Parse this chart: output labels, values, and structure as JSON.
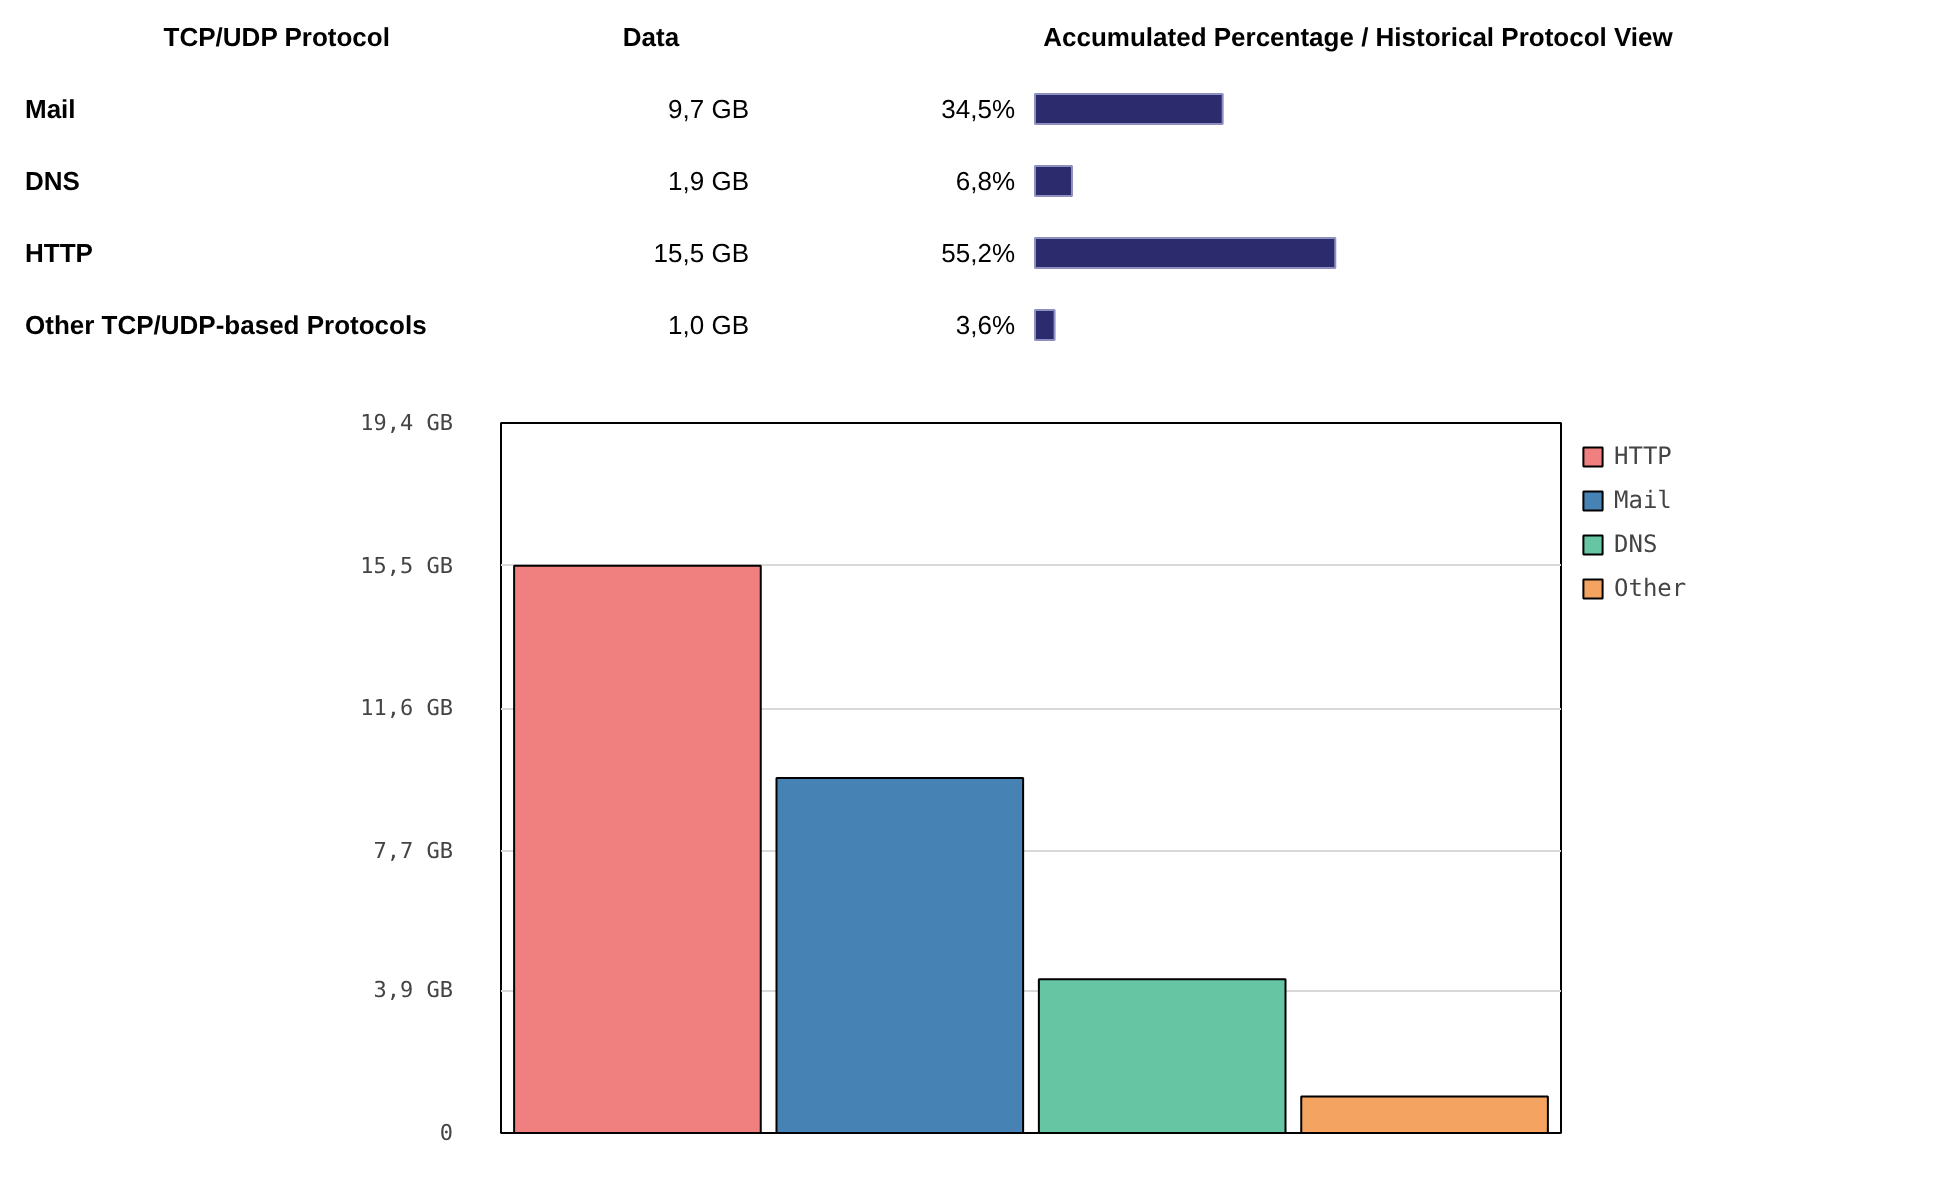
{
  "chart_data": [
    {
      "type": "bar",
      "orientation": "horizontal",
      "ylabel": "TCP/UDP Protocol",
      "title": "Accumulated Percentage / Historical Protocol View",
      "categories": [
        "Mail",
        "DNS",
        "HTTP",
        "Other TCP/UDP-based Protocols"
      ],
      "values": [
        34.5,
        6.8,
        55.2,
        3.6
      ],
      "value_labels": [
        "34,5%",
        "6,8%",
        "55,2%",
        "3,6%"
      ],
      "color": "#2b2b6e",
      "tick_labels": "y",
      "annotations": [
        "Data",
        "9,7 GB",
        "1,9 GB",
        "15,5 GB",
        "1,0 GB"
      ]
    },
    {
      "type": "bar",
      "categories": [
        null,
        null,
        null,
        null
      ],
      "series": [
        {
          "name": "HTTP",
          "color": "#f08080",
          "values": [
            15.5,
            null,
            null,
            null
          ]
        },
        {
          "name": "Mail",
          "color": "#4682b4",
          "values": [
            null,
            9.7,
            null,
            null
          ]
        },
        {
          "name": "DNS",
          "color": "#66c6a4",
          "values": [
            null,
            null,
            4.2,
            null
          ]
        },
        {
          "name": "Other",
          "color": "#f4a460",
          "values": [
            null,
            null,
            null,
            1.0
          ]
        }
      ],
      "ylim": [
        0,
        19.4
      ],
      "yticks": [
        {
          "value": 0,
          "label": "0"
        },
        {
          "value": 3.9,
          "label": "3,9 GB"
        },
        {
          "value": 7.7,
          "label": "7,7 GB"
        },
        {
          "value": 11.6,
          "label": "11,6 GB"
        },
        {
          "value": 15.5,
          "label": "15,5 GB"
        },
        {
          "value": 19.4,
          "label": "19,4 GB"
        }
      ],
      "grid": "y",
      "legend": "right",
      "tick_labels": "y"
    }
  ]
}
